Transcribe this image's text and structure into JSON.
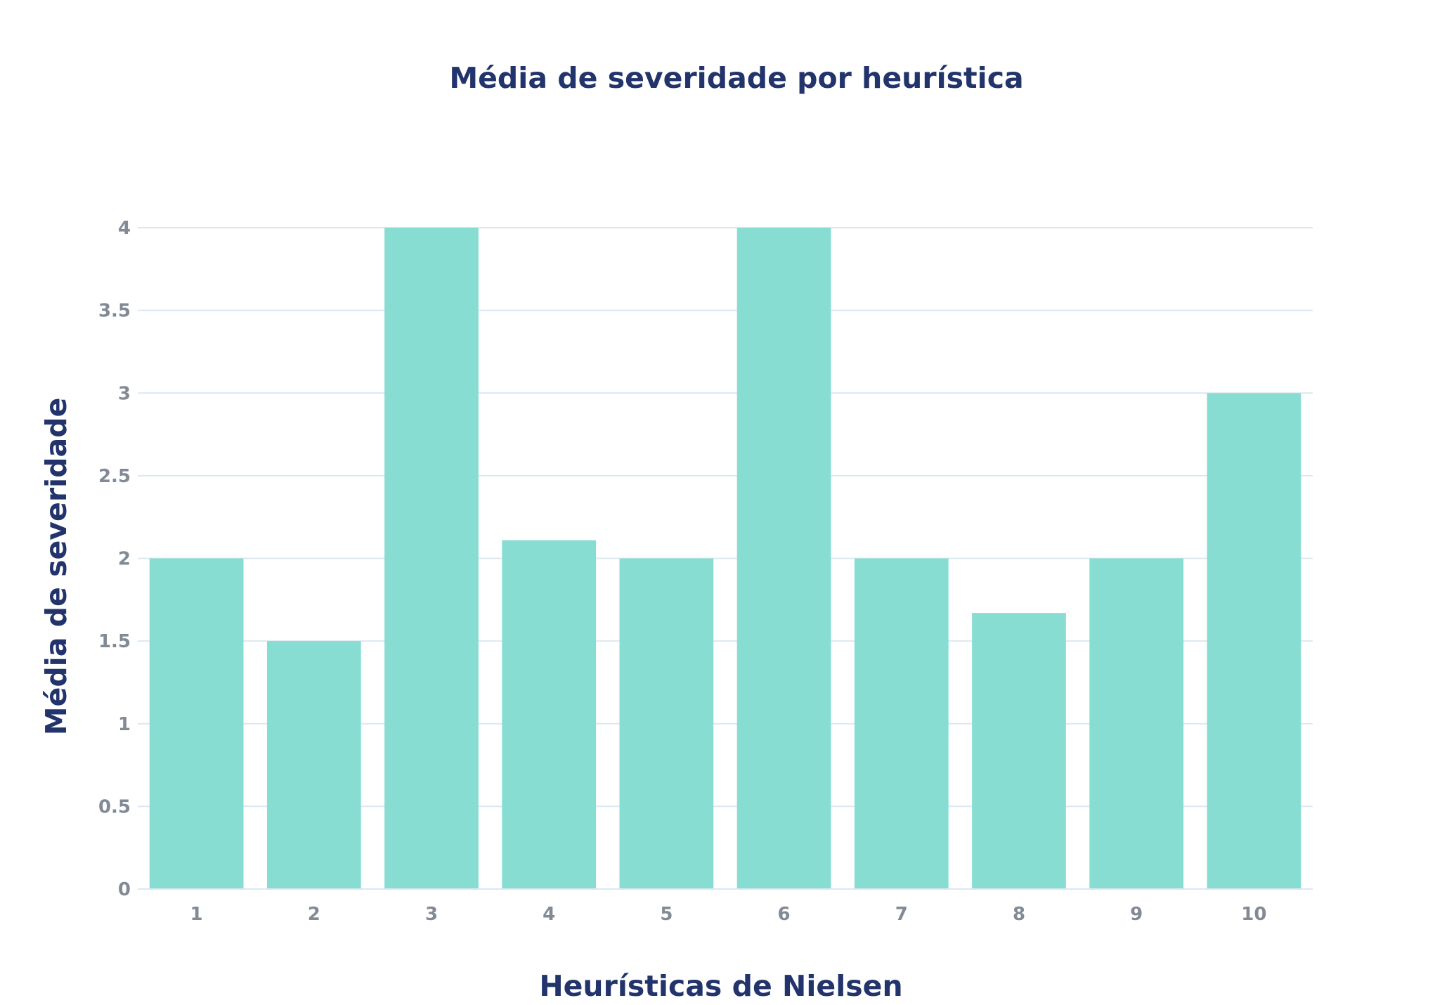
{
  "chart_data": {
    "type": "bar",
    "title": "Média de severidade por heurística",
    "xlabel": "Heurísticas de Nielsen",
    "ylabel": "Média de severidade",
    "categories": [
      "1",
      "2",
      "3",
      "4",
      "5",
      "6",
      "7",
      "8",
      "9",
      "10"
    ],
    "values": [
      2,
      1.5,
      4,
      2.11,
      2,
      4,
      2,
      1.67,
      2,
      3
    ],
    "yticks": [
      "0",
      "0.5",
      "1",
      "1.5",
      "2",
      "2.5",
      "3",
      "3.5",
      "4"
    ],
    "ylim": [
      0,
      4
    ],
    "grid": true,
    "legend": "none"
  },
  "colors": {
    "bar": "#88ddd3",
    "grid": "#dce8ef",
    "title": "#22346b",
    "tick": "#828a95"
  }
}
